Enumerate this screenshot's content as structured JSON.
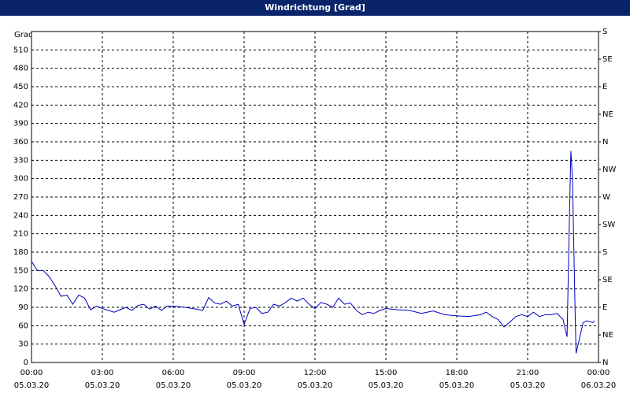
{
  "chart_data": {
    "type": "line",
    "title": "Windrichtung [Grad]",
    "y_label": "Grad",
    "grid": true,
    "xlim": [
      0,
      24
    ],
    "xticks": [
      {
        "value": 0,
        "label": "00:00",
        "date": "05.03.20"
      },
      {
        "value": 3,
        "label": "03:00",
        "date": "05.03.20"
      },
      {
        "value": 6,
        "label": "06:00",
        "date": "05.03.20"
      },
      {
        "value": 9,
        "label": "09:00",
        "date": "05.03.20"
      },
      {
        "value": 12,
        "label": "12:00",
        "date": "05.03.20"
      },
      {
        "value": 15,
        "label": "15:00",
        "date": "05.03.20"
      },
      {
        "value": 18,
        "label": "18:00",
        "date": "05.03.20"
      },
      {
        "value": 21,
        "label": "21:00",
        "date": "05.03.20"
      },
      {
        "value": 24,
        "label": "00:00",
        "date": "06.03.20"
      }
    ],
    "ylim": [
      0,
      540
    ],
    "yticks": [
      0,
      30,
      60,
      90,
      120,
      150,
      180,
      210,
      240,
      270,
      300,
      330,
      360,
      390,
      420,
      450,
      480,
      510
    ],
    "y2lim": [
      0,
      540
    ],
    "y2ticks": [
      {
        "value": 0,
        "label": "N"
      },
      {
        "value": 45,
        "label": "NE"
      },
      {
        "value": 90,
        "label": "E"
      },
      {
        "value": 135,
        "label": "SE"
      },
      {
        "value": 180,
        "label": "S"
      },
      {
        "value": 225,
        "label": "SW"
      },
      {
        "value": 270,
        "label": "W"
      },
      {
        "value": 315,
        "label": "NW"
      },
      {
        "value": 360,
        "label": "N"
      },
      {
        "value": 405,
        "label": "NE"
      },
      {
        "value": 450,
        "label": "E"
      },
      {
        "value": 495,
        "label": "SE"
      },
      {
        "value": 540,
        "label": "S"
      }
    ],
    "series": [
      {
        "color": "#0000c0",
        "x": [
          0,
          0.25,
          0.5,
          0.75,
          1,
          1.25,
          1.5,
          1.75,
          2,
          2.25,
          2.5,
          2.75,
          3,
          3.25,
          3.5,
          3.75,
          4,
          4.25,
          4.5,
          4.75,
          5,
          5.25,
          5.5,
          5.75,
          6,
          6.5,
          7,
          7.25,
          7.5,
          7.75,
          8,
          8.25,
          8.5,
          8.75,
          9,
          9.25,
          9.5,
          9.75,
          10,
          10.25,
          10.5,
          10.75,
          11,
          11.25,
          11.5,
          11.75,
          12,
          12.25,
          12.5,
          12.75,
          13,
          13.25,
          13.5,
          13.75,
          14,
          14.25,
          14.5,
          14.75,
          15,
          15.5,
          16,
          16.5,
          17,
          17.5,
          18,
          18.5,
          19,
          19.25,
          19.5,
          19.75,
          20,
          20.25,
          20.5,
          20.75,
          21,
          21.25,
          21.5,
          21.75,
          22,
          22.25,
          22.5,
          22.67,
          22.75,
          22.83,
          22.9,
          23,
          23.05,
          23.2,
          23.35,
          23.5,
          23.75,
          23.83
        ],
        "values": [
          165,
          150,
          150,
          140,
          125,
          108,
          110,
          95,
          110,
          105,
          86,
          92,
          88,
          85,
          82,
          86,
          90,
          85,
          93,
          95,
          87,
          92,
          85,
          92,
          92,
          90,
          87,
          85,
          106,
          97,
          95,
          100,
          92,
          95,
          62,
          88,
          90,
          80,
          82,
          95,
          92,
          98,
          105,
          100,
          105,
          95,
          88,
          98,
          95,
          90,
          105,
          95,
          97,
          85,
          78,
          82,
          80,
          85,
          88,
          86,
          85,
          80,
          84,
          78,
          76,
          75,
          78,
          82,
          75,
          70,
          58,
          66,
          75,
          78,
          75,
          82,
          75,
          78,
          78,
          80,
          70,
          42,
          200,
          345,
          300,
          100,
          15,
          40,
          65,
          68,
          65,
          68
        ]
      }
    ]
  }
}
